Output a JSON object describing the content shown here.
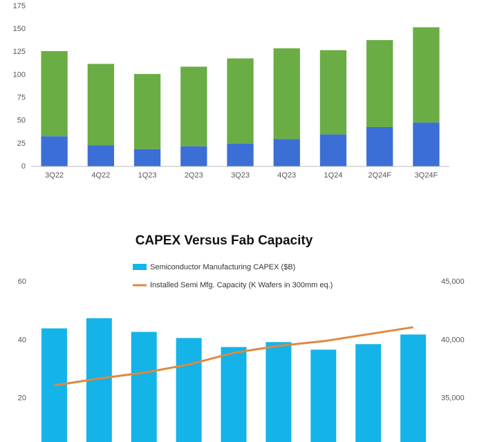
{
  "chart_data": [
    {
      "type": "bar",
      "stacked": true,
      "categories": [
        "3Q22",
        "4Q22",
        "1Q23",
        "2Q23",
        "3Q23",
        "4Q23",
        "1Q24",
        "2Q24F",
        "3Q24F"
      ],
      "series": [
        {
          "color": "#3b6fd6",
          "values": [
            33,
            23,
            19,
            22,
            25,
            30,
            35,
            43,
            48
          ]
        },
        {
          "color": "#6aad45",
          "values": [
            93,
            89,
            82,
            87,
            93,
            99,
            92,
            95,
            104
          ]
        }
      ],
      "ylim": [
        0,
        175
      ],
      "yticks": [
        0,
        25,
        50,
        75,
        100,
        125,
        150,
        175
      ],
      "grid": false
    },
    {
      "type": "bar",
      "title": "CAPEX Versus Fab Capacity",
      "categories": [
        null,
        null,
        null,
        null,
        null,
        null,
        null,
        null,
        null
      ],
      "series": [
        {
          "name": "Semiconductor Manufacturing CAPEX ($B)",
          "type": "bar",
          "color": "#14b4e8",
          "values": [
            44,
            47.5,
            42.8,
            40.7,
            37.6,
            39.3,
            36.7,
            38.6,
            41.9
          ]
        },
        {
          "name": "Installed Semi Mfg. Capacity (K Wafers in 300mm eq.)",
          "type": "line",
          "axis": "y2",
          "color": "#e0883d",
          "values": [
            36100,
            36700,
            37200,
            37900,
            38900,
            39500,
            39900,
            40500,
            41100
          ]
        }
      ],
      "ylim": [
        5,
        60
      ],
      "yticks": [
        20,
        40,
        60
      ],
      "y2lim": [
        31250,
        45000
      ],
      "y2ticks": [
        {
          "value": 35000,
          "label": "35,000"
        },
        {
          "value": 40000,
          "label": "40,000"
        },
        {
          "value": 45000,
          "label": "45,000"
        }
      ],
      "grid": false
    }
  ]
}
